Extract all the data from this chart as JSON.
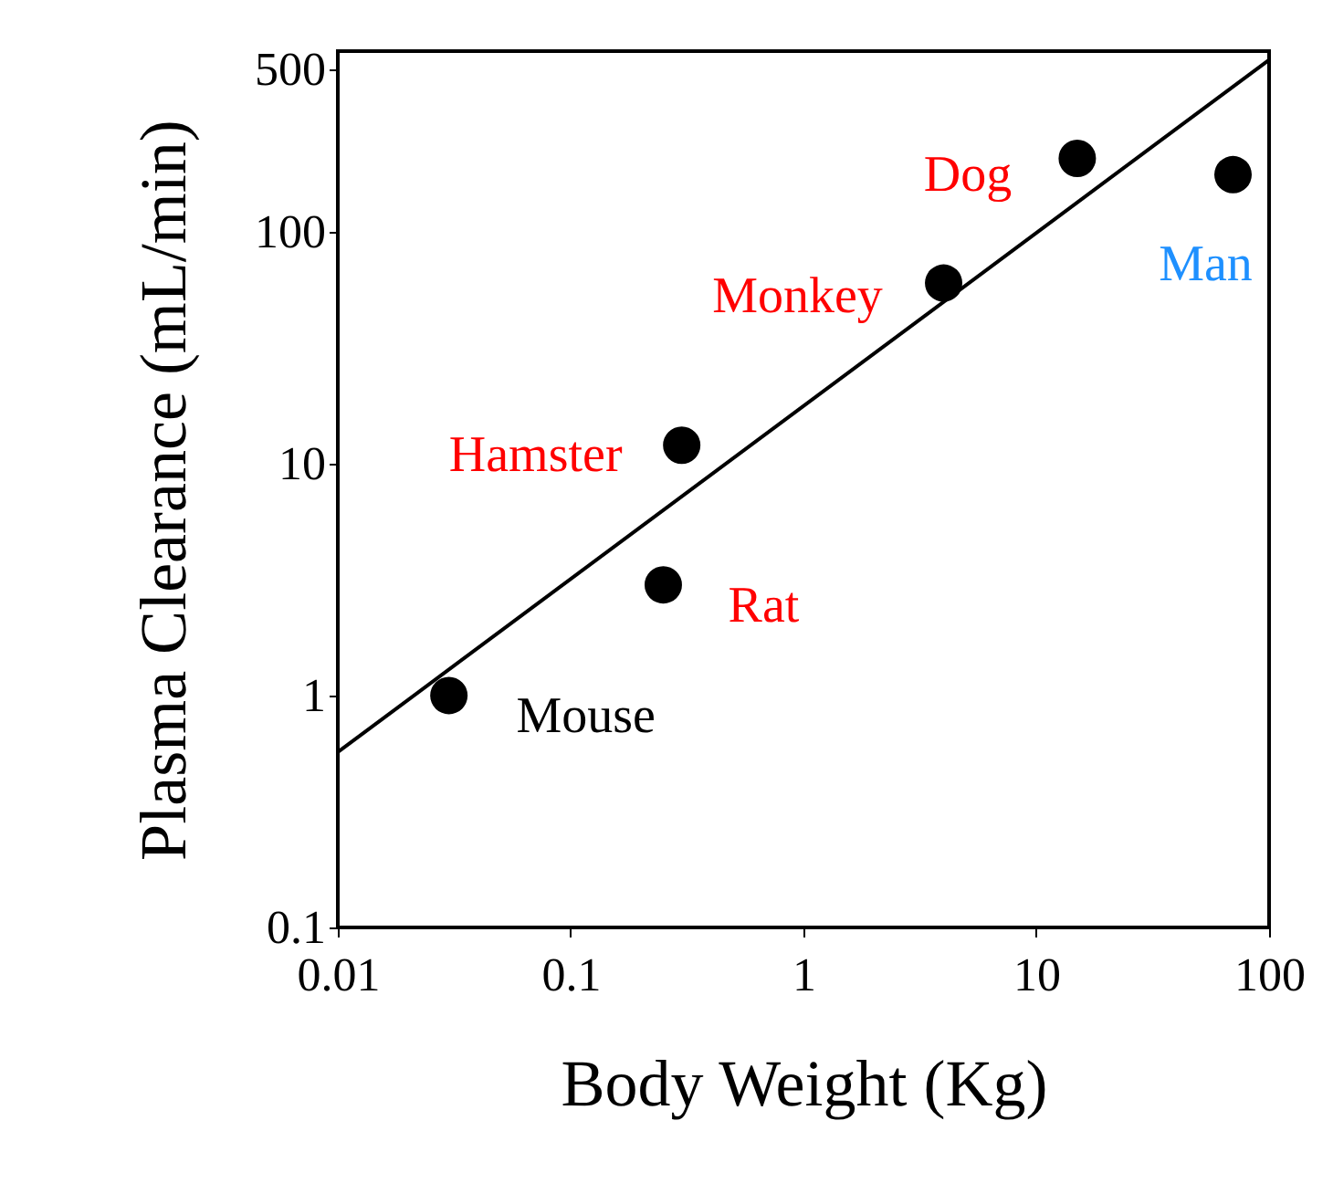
{
  "chart_data": {
    "type": "scatter",
    "xlabel": "Body Weight (Kg)",
    "ylabel": "Plasma Clearance (mL/min)",
    "log": "xy",
    "xlim": [
      0.01,
      100
    ],
    "ylim": [
      0.1,
      600
    ],
    "xticks": [
      0.01,
      0.1,
      1,
      10,
      100
    ],
    "yticks": [
      0.1,
      1,
      10,
      100,
      500
    ],
    "grid": false,
    "legend": false,
    "marker": "circle",
    "series": [
      {
        "color": "#000000",
        "x": [
          0.03,
          0.25,
          0.3,
          4,
          15,
          70
        ],
        "values": [
          1,
          3,
          12,
          60,
          207,
          176
        ]
      },
      {
        "type": "line",
        "color": "#000000",
        "x": [
          0.01,
          100
        ],
        "values": [
          0.57,
          550
        ],
        "line_style": "solid",
        "marker": "none"
      }
    ],
    "annotations": [
      {
        "text": "Mouse",
        "x": 0.03,
        "y": 1
      },
      {
        "text": "Rat",
        "x": 0.25,
        "y": 3
      },
      {
        "text": "Hamster",
        "x": 0.3,
        "y": 12
      },
      {
        "text": "Monkey",
        "x": 4,
        "y": 60
      },
      {
        "text": "Dog",
        "x": 15,
        "y": 207
      },
      {
        "text": "Man",
        "x": 70,
        "y": 176
      }
    ]
  }
}
